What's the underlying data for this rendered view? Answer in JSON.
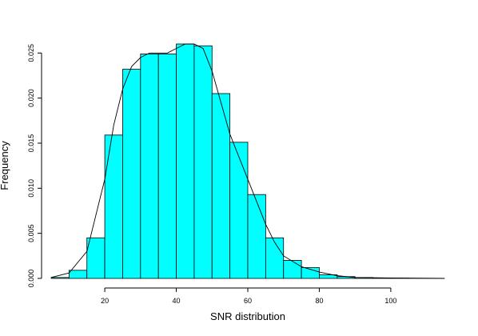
{
  "chart_data": {
    "type": "histogram",
    "xlabel": "SNR distribution",
    "ylabel": "Frequency",
    "bins": [
      5,
      10,
      15,
      20,
      25,
      30,
      35,
      40,
      45,
      50,
      55,
      60,
      65,
      70,
      75,
      80,
      85,
      90,
      95,
      100,
      105,
      110,
      115
    ],
    "values": [
      0.0001,
      0.0009,
      0.0045,
      0.0159,
      0.0232,
      0.0249,
      0.0249,
      0.026,
      0.0258,
      0.0205,
      0.0151,
      0.0093,
      0.0045,
      0.002,
      0.0012,
      0.0004,
      0.0002,
      0.0001,
      5e-05,
      3e-05,
      1e-05,
      1e-05
    ],
    "color": "#00ffff",
    "density": {
      "x": [
        5,
        10,
        15,
        20,
        22.5,
        25,
        27.5,
        30,
        32.5,
        35,
        37.5,
        40,
        42.5,
        45,
        47.5,
        50,
        52.5,
        55,
        57.5,
        60,
        62.5,
        65,
        67.5,
        70,
        75,
        80,
        85,
        90,
        100,
        115
      ],
      "values": [
        0.0001,
        0.0006,
        0.003,
        0.011,
        0.017,
        0.021,
        0.0235,
        0.0245,
        0.025,
        0.025,
        0.025,
        0.0255,
        0.026,
        0.026,
        0.0255,
        0.023,
        0.0195,
        0.016,
        0.0135,
        0.011,
        0.0085,
        0.006,
        0.004,
        0.0025,
        0.0013,
        0.0007,
        0.0003,
        0.0001,
        5e-05,
        0
      ],
      "color": "#000000"
    },
    "xlim": [
      5,
      115
    ],
    "ylim": [
      0,
      0.026
    ],
    "xticks": [
      20,
      40,
      60,
      80,
      100
    ],
    "yticks": [
      {
        "value": 0,
        "label": "0.000"
      },
      {
        "value": 0.005,
        "label": "0.005"
      },
      {
        "value": 0.01,
        "label": "0.010"
      },
      {
        "value": 0.015,
        "label": "0.015"
      },
      {
        "value": 0.02,
        "label": "0.020"
      },
      {
        "value": 0.025,
        "label": "0.025"
      }
    ]
  }
}
